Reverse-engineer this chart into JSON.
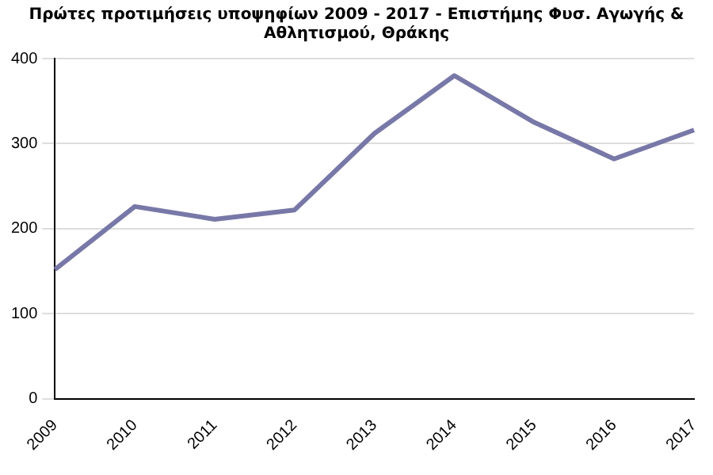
{
  "chart_data": {
    "type": "line",
    "title": "Πρώτες προτιμήσεις υποψηφίων 2009 - 2017 - Επιστήμης Φυσ. Αγωγής & Αθλητισμού, Θράκης",
    "categories": [
      "2009",
      "2010",
      "2011",
      "2012",
      "2013",
      "2014",
      "2015",
      "2016",
      "2017"
    ],
    "series": [
      {
        "color": "#7878a8",
        "values": [
          152,
          226,
          211,
          222,
          312,
          380,
          325,
          282,
          316
        ]
      }
    ],
    "ylim": [
      0,
      400
    ],
    "yticks": [
      0,
      100,
      200,
      300,
      400
    ],
    "grid": "y",
    "legend": false,
    "marker": "none"
  }
}
